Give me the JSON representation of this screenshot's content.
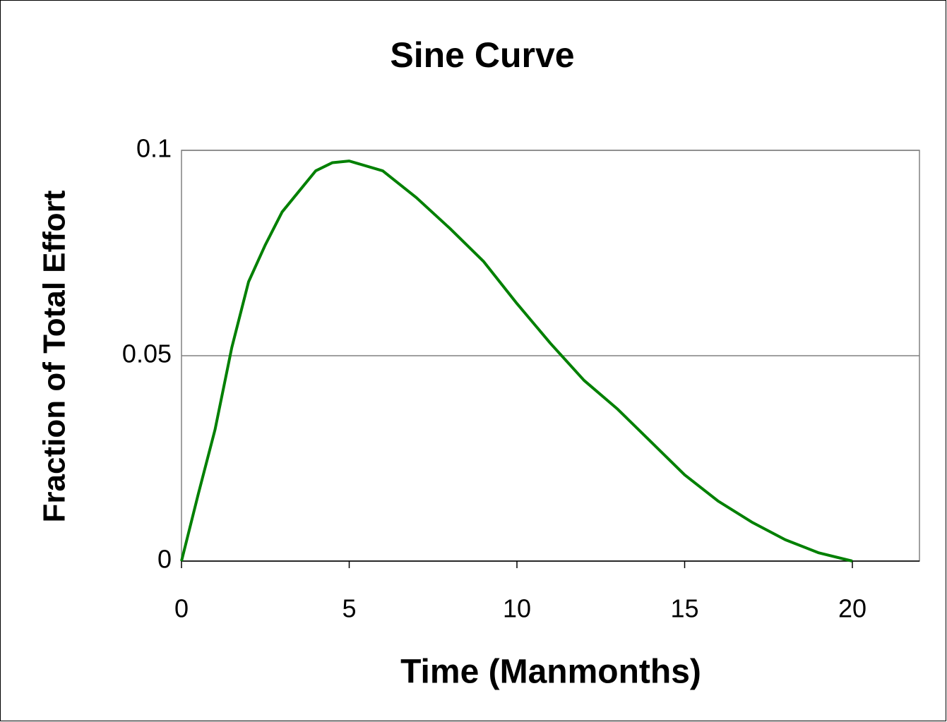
{
  "chart_data": {
    "type": "line",
    "title": "Sine Curve",
    "x_label": "Time (Manmonths)",
    "y_label": "Fraction of Total Effort",
    "x": [
      0,
      0.5,
      1,
      1.5,
      2,
      2.5,
      3,
      3.5,
      4,
      4.5,
      5,
      6,
      7,
      8,
      9,
      10,
      11,
      12,
      13,
      14,
      15,
      16,
      17,
      18,
      19,
      20
    ],
    "series": [
      {
        "name": "Sine Curve",
        "color": "#008000",
        "values": [
          0,
          0.0163,
          0.032,
          0.052,
          0.068,
          0.077,
          0.085,
          0.09,
          0.095,
          0.097,
          0.0974,
          0.095,
          0.0885,
          0.081,
          0.073,
          0.0627,
          0.053,
          0.044,
          0.037,
          0.029,
          0.021,
          0.0146,
          0.0095,
          0.0052,
          0.002,
          0
        ]
      }
    ],
    "xlim": [
      0,
      22
    ],
    "xticks": [
      0,
      5,
      10,
      15,
      20
    ],
    "ylim": [
      0,
      0.1
    ],
    "yticks": [
      0,
      0.05,
      0.1
    ],
    "grid": true
  }
}
